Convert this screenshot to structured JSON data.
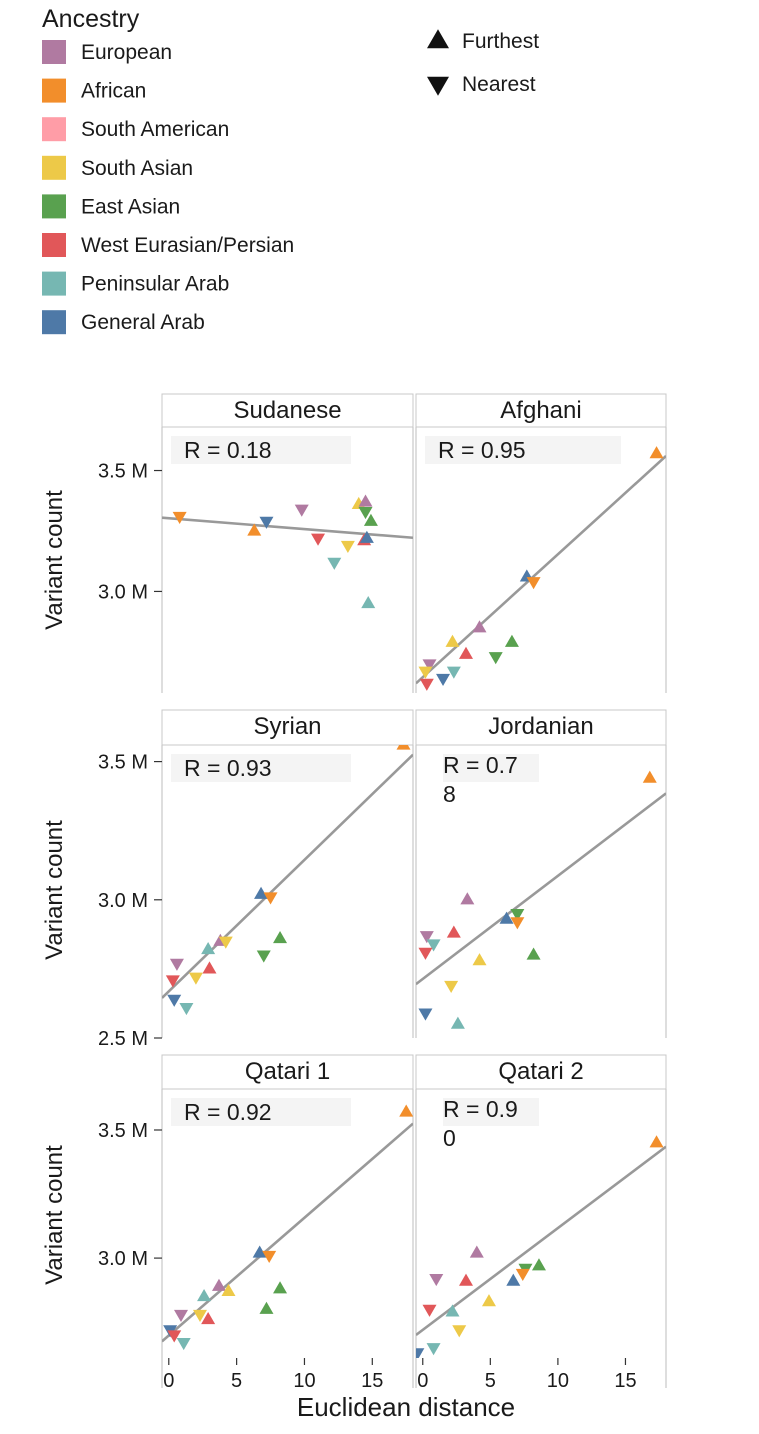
{
  "legend": {
    "title": "Ancestry",
    "ancestries": [
      {
        "key": "EU",
        "label": "European",
        "color": "#b07aa1"
      },
      {
        "key": "AF",
        "label": "African",
        "color": "#f28e2b"
      },
      {
        "key": "SA",
        "label": "South American",
        "color": "#ff9da7"
      },
      {
        "key": "SAs",
        "label": "South Asian",
        "color": "#edc948"
      },
      {
        "key": "EA",
        "label": "East Asian",
        "color": "#59a14f"
      },
      {
        "key": "WE",
        "label": "West Eurasian/Persian",
        "color": "#e15759"
      },
      {
        "key": "PA",
        "label": "Peninsular Arab",
        "color": "#76b7b2"
      },
      {
        "key": "GA",
        "label": "General Arab",
        "color": "#4e79a7"
      }
    ],
    "markers": [
      {
        "shape": "up",
        "label": "Furthest"
      },
      {
        "shape": "down",
        "label": "Nearest"
      }
    ]
  },
  "chart_data": {
    "type": "scatter",
    "ylabel": "Variant count",
    "xlabel": "Euclidean distance",
    "xlim": [
      -0.5,
      18
    ],
    "xticks": [
      0,
      5,
      10,
      15
    ],
    "xtick_labels": [
      "0",
      "5",
      "10",
      "15"
    ],
    "y_unit_suffix": " M",
    "rows": [
      {
        "ylim": [
          2.58,
          3.68
        ],
        "yticks": [
          3.0,
          3.5
        ],
        "ytick_labels": [
          "3.0 M",
          "3.5 M"
        ]
      },
      {
        "ylim": [
          2.5,
          3.56
        ],
        "yticks": [
          2.5,
          3.0,
          3.5
        ],
        "ytick_labels": [
          "2.5 M",
          "3.0 M",
          "3.5 M"
        ]
      },
      {
        "ylim": [
          2.61,
          3.66
        ],
        "yticks": [
          3.0,
          3.5
        ],
        "ytick_labels": [
          "3.0 M",
          "3.5 M"
        ]
      }
    ],
    "panels": [
      {
        "title": "Sudanese",
        "r_label": "R = 0.18",
        "row": 0,
        "col": 0,
        "fit": [
          [
            -0.5,
            3.305
          ],
          [
            18,
            3.222
          ]
        ],
        "points": [
          {
            "x": 0.8,
            "y": 3.31,
            "a": "AF",
            "m": "down"
          },
          {
            "x": 6.3,
            "y": 3.25,
            "a": "AF",
            "m": "up"
          },
          {
            "x": 7.2,
            "y": 3.29,
            "a": "GA",
            "m": "down"
          },
          {
            "x": 9.8,
            "y": 3.34,
            "a": "EU",
            "m": "down"
          },
          {
            "x": 11.0,
            "y": 3.22,
            "a": "WE",
            "m": "down"
          },
          {
            "x": 12.2,
            "y": 3.12,
            "a": "PA",
            "m": "down"
          },
          {
            "x": 13.2,
            "y": 3.19,
            "a": "SAs",
            "m": "down"
          },
          {
            "x": 14.0,
            "y": 3.36,
            "a": "SAs",
            "m": "up"
          },
          {
            "x": 14.5,
            "y": 3.37,
            "a": "EU",
            "m": "up"
          },
          {
            "x": 14.5,
            "y": 3.33,
            "a": "EA",
            "m": "down"
          },
          {
            "x": 14.9,
            "y": 3.29,
            "a": "EA",
            "m": "up"
          },
          {
            "x": 14.4,
            "y": 3.21,
            "a": "WE",
            "m": "up"
          },
          {
            "x": 14.6,
            "y": 3.22,
            "a": "GA",
            "m": "up"
          },
          {
            "x": 14.7,
            "y": 2.95,
            "a": "PA",
            "m": "up"
          }
        ]
      },
      {
        "title": "Afghani",
        "r_label": "R = 0.95",
        "row": 0,
        "col": 1,
        "fit": [
          [
            -0.5,
            2.62
          ],
          [
            18,
            3.56
          ]
        ],
        "points": [
          {
            "x": 17.3,
            "y": 3.57,
            "a": "AF",
            "m": "up"
          },
          {
            "x": 7.7,
            "y": 3.06,
            "a": "GA",
            "m": "up"
          },
          {
            "x": 8.2,
            "y": 3.04,
            "a": "AF",
            "m": "down"
          },
          {
            "x": 4.2,
            "y": 2.85,
            "a": "EU",
            "m": "up"
          },
          {
            "x": 2.2,
            "y": 2.79,
            "a": "SAs",
            "m": "up"
          },
          {
            "x": 6.6,
            "y": 2.79,
            "a": "EA",
            "m": "up"
          },
          {
            "x": 5.4,
            "y": 2.73,
            "a": "EA",
            "m": "down"
          },
          {
            "x": 3.2,
            "y": 2.74,
            "a": "WE",
            "m": "up"
          },
          {
            "x": 0.5,
            "y": 2.7,
            "a": "EU",
            "m": "down"
          },
          {
            "x": 0.2,
            "y": 2.67,
            "a": "SAs",
            "m": "down"
          },
          {
            "x": 2.3,
            "y": 2.67,
            "a": "PA",
            "m": "down"
          },
          {
            "x": 1.5,
            "y": 2.64,
            "a": "GA",
            "m": "down"
          },
          {
            "x": 0.3,
            "y": 2.62,
            "a": "WE",
            "m": "down"
          }
        ]
      },
      {
        "title": "Syrian",
        "r_label": "R = 0.93",
        "row": 1,
        "col": 0,
        "fit": [
          [
            -0.5,
            2.645
          ],
          [
            18,
            3.525
          ]
        ],
        "points": [
          {
            "x": 17.3,
            "y": 3.56,
            "a": "AF",
            "m": "up"
          },
          {
            "x": 6.8,
            "y": 3.02,
            "a": "GA",
            "m": "up"
          },
          {
            "x": 7.5,
            "y": 3.01,
            "a": "AF",
            "m": "down"
          },
          {
            "x": 8.2,
            "y": 2.86,
            "a": "EA",
            "m": "up"
          },
          {
            "x": 7.0,
            "y": 2.8,
            "a": "EA",
            "m": "down"
          },
          {
            "x": 3.8,
            "y": 2.85,
            "a": "EU",
            "m": "up"
          },
          {
            "x": 4.2,
            "y": 2.85,
            "a": "SAs",
            "m": "down"
          },
          {
            "x": 2.9,
            "y": 2.82,
            "a": "PA",
            "m": "up"
          },
          {
            "x": 0.6,
            "y": 2.77,
            "a": "EU",
            "m": "down"
          },
          {
            "x": 3.0,
            "y": 2.75,
            "a": "WE",
            "m": "up"
          },
          {
            "x": 2.0,
            "y": 2.72,
            "a": "SAs",
            "m": "down"
          },
          {
            "x": 0.3,
            "y": 2.71,
            "a": "WE",
            "m": "down"
          },
          {
            "x": 0.4,
            "y": 2.64,
            "a": "GA",
            "m": "down"
          },
          {
            "x": 1.3,
            "y": 2.61,
            "a": "PA",
            "m": "down"
          }
        ]
      },
      {
        "title": "Jordanian",
        "r_label": "R = 0.78",
        "row": 1,
        "col": 1,
        "fit": [
          [
            -0.5,
            2.695
          ],
          [
            18,
            3.385
          ]
        ],
        "points": [
          {
            "x": 16.8,
            "y": 3.44,
            "a": "AF",
            "m": "up"
          },
          {
            "x": 3.3,
            "y": 3.0,
            "a": "EU",
            "m": "up"
          },
          {
            "x": 7.0,
            "y": 2.95,
            "a": "EA",
            "m": "down"
          },
          {
            "x": 6.2,
            "y": 2.93,
            "a": "GA",
            "m": "up"
          },
          {
            "x": 7.0,
            "y": 2.92,
            "a": "AF",
            "m": "down"
          },
          {
            "x": 0.3,
            "y": 2.87,
            "a": "EU",
            "m": "down"
          },
          {
            "x": 0.8,
            "y": 2.84,
            "a": "PA",
            "m": "down"
          },
          {
            "x": 2.3,
            "y": 2.88,
            "a": "WE",
            "m": "up"
          },
          {
            "x": 0.2,
            "y": 2.81,
            "a": "WE",
            "m": "down"
          },
          {
            "x": 4.2,
            "y": 2.78,
            "a": "SAs",
            "m": "up"
          },
          {
            "x": 8.2,
            "y": 2.8,
            "a": "EA",
            "m": "up"
          },
          {
            "x": 2.1,
            "y": 2.69,
            "a": "SAs",
            "m": "down"
          },
          {
            "x": 0.2,
            "y": 2.59,
            "a": "GA",
            "m": "down"
          },
          {
            "x": 2.6,
            "y": 2.55,
            "a": "PA",
            "m": "up"
          }
        ]
      },
      {
        "title": "Qatari 1",
        "r_label": "R = 0.92",
        "row": 2,
        "col": 0,
        "fit": [
          [
            -0.5,
            2.675
          ],
          [
            18,
            3.525
          ]
        ],
        "points": [
          {
            "x": 17.5,
            "y": 3.57,
            "a": "AF",
            "m": "up"
          },
          {
            "x": 6.7,
            "y": 3.02,
            "a": "GA",
            "m": "up"
          },
          {
            "x": 7.4,
            "y": 3.01,
            "a": "AF",
            "m": "down"
          },
          {
            "x": 8.2,
            "y": 2.88,
            "a": "EA",
            "m": "up"
          },
          {
            "x": 7.2,
            "y": 2.8,
            "a": "EA",
            "m": "up"
          },
          {
            "x": 3.7,
            "y": 2.89,
            "a": "EU",
            "m": "up"
          },
          {
            "x": 4.4,
            "y": 2.87,
            "a": "SAs",
            "m": "up"
          },
          {
            "x": 2.6,
            "y": 2.85,
            "a": "PA",
            "m": "up"
          },
          {
            "x": 0.9,
            "y": 2.78,
            "a": "EU",
            "m": "down"
          },
          {
            "x": 2.3,
            "y": 2.78,
            "a": "SAs",
            "m": "down"
          },
          {
            "x": 2.9,
            "y": 2.76,
            "a": "WE",
            "m": "up"
          },
          {
            "x": 0.1,
            "y": 2.72,
            "a": "GA",
            "m": "down"
          },
          {
            "x": 0.4,
            "y": 2.7,
            "a": "WE",
            "m": "down"
          },
          {
            "x": 1.1,
            "y": 2.67,
            "a": "PA",
            "m": "down"
          }
        ]
      },
      {
        "title": "Qatari 2",
        "r_label": "R = 0.90",
        "row": 2,
        "col": 1,
        "fit": [
          [
            -0.5,
            2.7
          ],
          [
            18,
            3.435
          ]
        ],
        "points": [
          {
            "x": 17.3,
            "y": 3.45,
            "a": "AF",
            "m": "up"
          },
          {
            "x": 4.0,
            "y": 3.02,
            "a": "EU",
            "m": "up"
          },
          {
            "x": 8.6,
            "y": 2.97,
            "a": "EA",
            "m": "up"
          },
          {
            "x": 7.6,
            "y": 2.96,
            "a": "EA",
            "m": "down"
          },
          {
            "x": 7.4,
            "y": 2.94,
            "a": "AF",
            "m": "down"
          },
          {
            "x": 1.0,
            "y": 2.92,
            "a": "EU",
            "m": "down"
          },
          {
            "x": 3.2,
            "y": 2.91,
            "a": "WE",
            "m": "up"
          },
          {
            "x": 6.7,
            "y": 2.91,
            "a": "GA",
            "m": "up"
          },
          {
            "x": 4.9,
            "y": 2.83,
            "a": "SAs",
            "m": "up"
          },
          {
            "x": 0.5,
            "y": 2.8,
            "a": "WE",
            "m": "down"
          },
          {
            "x": 2.2,
            "y": 2.79,
            "a": "PA",
            "m": "up"
          },
          {
            "x": 2.7,
            "y": 2.72,
            "a": "SAs",
            "m": "down"
          },
          {
            "x": 0.8,
            "y": 2.65,
            "a": "PA",
            "m": "down"
          },
          {
            "x": -0.4,
            "y": 2.63,
            "a": "GA",
            "m": "down"
          }
        ]
      }
    ]
  }
}
